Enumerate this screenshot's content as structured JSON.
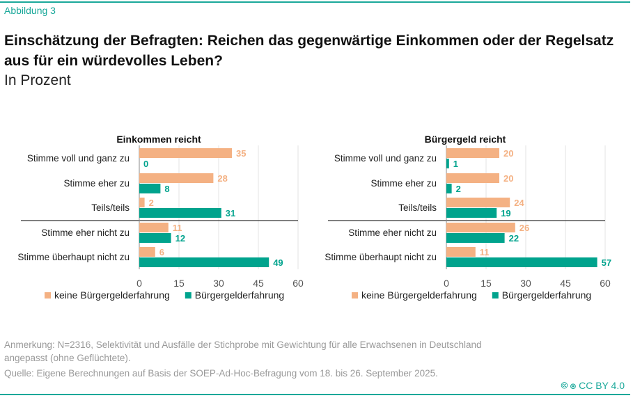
{
  "figure_label": "Abbildung 3",
  "title": "Einschätzung der Befragten: Reichen das gegenwärtige Einkommen oder der Regelsatz aus für ein würdevolles Leben?",
  "subtitle": "In Prozent",
  "chart_data": [
    {
      "type": "bar",
      "orientation": "horizontal",
      "title": "Einkommen reicht",
      "categories": [
        "Stimme voll und ganz zu",
        "Stimme eher zu",
        "Teils/teils",
        "Stimme eher nicht zu",
        "Stimme überhaupt nicht zu"
      ],
      "series": [
        {
          "name": "keine Bürgergelderfahrung",
          "color": "#F4B183",
          "values": [
            35,
            28,
            2,
            11,
            6
          ]
        },
        {
          "name": "Bürgergelderfahrung",
          "color": "#00A38D",
          "values": [
            0,
            8,
            31,
            12,
            49
          ]
        }
      ],
      "xlim": [
        0,
        60
      ],
      "xticks": [
        0,
        15,
        30,
        45,
        60
      ],
      "grid": true,
      "legend": "bottom"
    },
    {
      "type": "bar",
      "orientation": "horizontal",
      "title": "Bürgergeld reicht",
      "categories": [
        "Stimme voll und ganz zu",
        "Stimme eher zu",
        "Teils/teils",
        "Stimme eher nicht zu",
        "Stimme überhaupt nicht zu"
      ],
      "series": [
        {
          "name": "keine Bürgergelderfahrung",
          "color": "#F4B183",
          "values": [
            20,
            20,
            24,
            26,
            11
          ]
        },
        {
          "name": "Bürgergelderfahrung",
          "color": "#00A38D",
          "values": [
            1,
            2,
            19,
            22,
            57
          ]
        }
      ],
      "xlim": [
        0,
        60
      ],
      "xticks": [
        0,
        15,
        30,
        45,
        60
      ],
      "grid": true,
      "legend": "bottom"
    }
  ],
  "note": "Anmerkung: N=2316, Selektivität und Ausfälle der Stichprobe mit Gewichtung für alle Erwachsenen in Deutschland angepasst (ohne Geflüchtete).",
  "source": "Quelle: Eigene Berechnungen auf Basis der SOEP-Ad-Hoc-Befragung vom 18. bis 26. September 2025.",
  "license": "CC BY 4.0"
}
